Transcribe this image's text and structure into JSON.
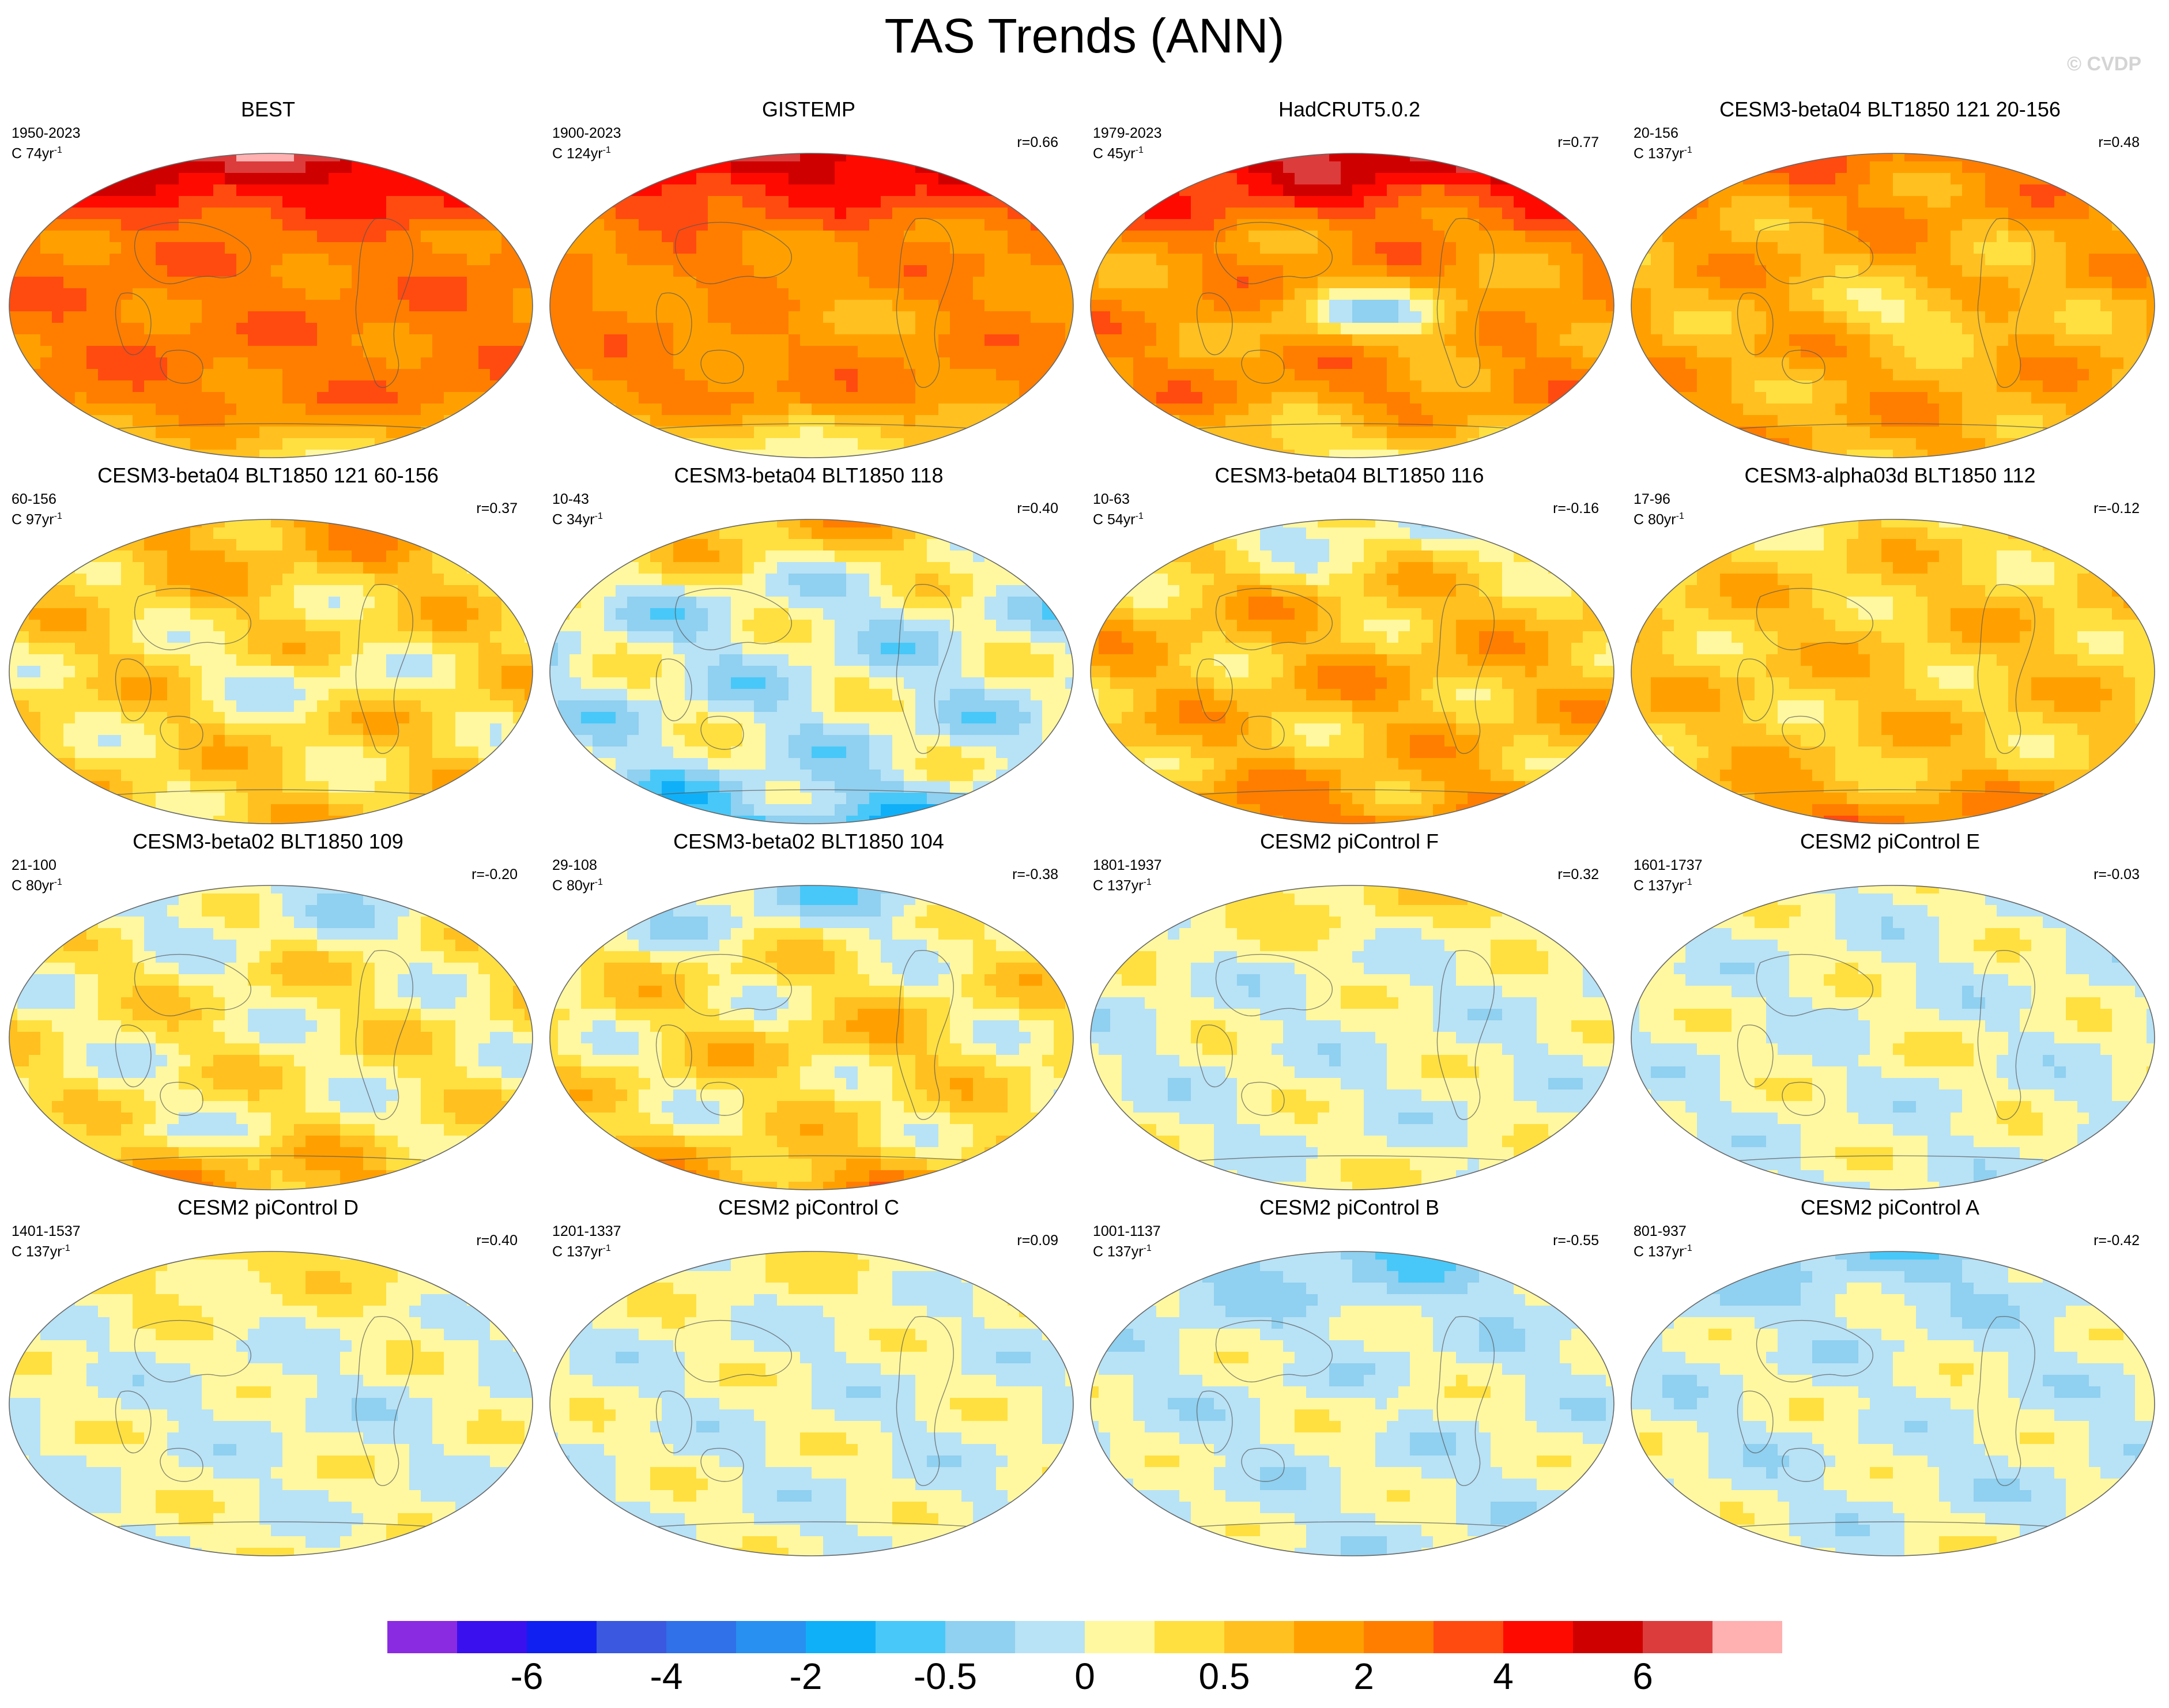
{
  "title": "TAS Trends (ANN)",
  "watermark": "© CVDP",
  "chart_data": {
    "type": "heatmap",
    "variable": "TAS",
    "season": "ANN",
    "panels": [
      {
        "title": "BEST",
        "years": "1950-2023",
        "c": "C 74yr",
        "r": "",
        "pattern": {
          "base": 14,
          "arctic": 4,
          "enso": 0,
          "south": -3,
          "amp": 1
        }
      },
      {
        "title": "GISTEMP",
        "years": "1900-2023",
        "c": "C 124yr",
        "r": "r=0.66",
        "pattern": {
          "base": 13.6,
          "arctic": 4,
          "enso": -1,
          "south": -4,
          "amp": 1
        }
      },
      {
        "title": "HadCRUT5.0.2",
        "years": "1979-2023",
        "c": "C 45yr",
        "r": "r=0.77",
        "pattern": {
          "base": 13.3,
          "arctic": 4.5,
          "enso": -4,
          "south": -3,
          "amp": 1.5
        }
      },
      {
        "title": "CESM3-beta04 BLT1850 121 20-156",
        "years": "20-156",
        "c": "C 137yr",
        "r": "r=0.48",
        "pattern": {
          "base": 12.6,
          "arctic": 1.5,
          "enso": -2,
          "south": 0,
          "amp": 1.5
        }
      },
      {
        "title": "CESM3-beta04 BLT1850 121 60-156",
        "years": "60-156",
        "c": "C 97yr",
        "r": "r=0.37",
        "pattern": {
          "base": 11.2,
          "arctic": 1.8,
          "enso": -1.5,
          "south": 0.5,
          "amp": 1.8
        }
      },
      {
        "title": "CESM3-beta04 BLT1850 118",
        "years": "10-43",
        "c": "C 34yr",
        "r": "r=0.40",
        "pattern": {
          "base": 9.3,
          "arctic": 3,
          "enso": 0,
          "south": -2.5,
          "amp": 2
        }
      },
      {
        "title": "CESM3-beta04 BLT1850 116",
        "years": "10-63",
        "c": "C 54yr",
        "r": "r=-0.16",
        "pattern": {
          "base": 12,
          "arctic": -2.5,
          "enso": 0.5,
          "south": 2,
          "amp": 1.8
        }
      },
      {
        "title": "CESM3-alpha03d BLT1850 112",
        "years": "17-96",
        "c": "C 80yr",
        "r": "r=-0.12",
        "pattern": {
          "base": 11.7,
          "arctic": -0.5,
          "enso": 0,
          "south": 2,
          "amp": 1.5
        }
      },
      {
        "title": "CESM3-beta02 BLT1850 109",
        "years": "21-100",
        "c": "C 80yr",
        "r": "r=-0.20",
        "pattern": {
          "base": 10.5,
          "arctic": -1.5,
          "enso": 0,
          "south": 2.5,
          "amp": 1.8
        }
      },
      {
        "title": "CESM3-beta02 BLT1850 104",
        "years": "29-108",
        "c": "C 80yr",
        "r": "r=-0.38",
        "pattern": {
          "base": 10.8,
          "arctic": -2.5,
          "enso": 1,
          "south": 2.5,
          "amp": 1.8
        }
      },
      {
        "title": "CESM2 piControl F",
        "years": "1801-1937",
        "c": "C 137yr",
        "r": "r=0.32",
        "pattern": {
          "base": 9.6,
          "arctic": 1.5,
          "enso": 0,
          "south": 0.5,
          "amp": 1.2
        }
      },
      {
        "title": "CESM2 piControl E",
        "years": "1601-1737",
        "c": "C 137yr",
        "r": "r=-0.03",
        "pattern": {
          "base": 9.6,
          "arctic": 0,
          "enso": 0.3,
          "south": 0,
          "amp": 1.2
        }
      },
      {
        "title": "CESM2 piControl D",
        "years": "1401-1537",
        "c": "C 137yr",
        "r": "r=0.40",
        "pattern": {
          "base": 9.7,
          "arctic": 1.5,
          "enso": -0.5,
          "south": 0.3,
          "amp": 1.2
        }
      },
      {
        "title": "CESM2 piControl C",
        "years": "1201-1337",
        "c": "C 137yr",
        "r": "r=0.09",
        "pattern": {
          "base": 9.6,
          "arctic": 0.8,
          "enso": 0,
          "south": 0,
          "amp": 1.2
        }
      },
      {
        "title": "CESM2 piControl B",
        "years": "1001-1137",
        "c": "C 137yr",
        "r": "r=-0.55",
        "pattern": {
          "base": 9.4,
          "arctic": -1.5,
          "enso": 0.4,
          "south": 0,
          "amp": 1.2
        }
      },
      {
        "title": "CESM2 piControl A",
        "years": "801-937",
        "c": "C 137yr",
        "r": "r=-0.42",
        "pattern": {
          "base": 9.4,
          "arctic": -1.2,
          "enso": 0.3,
          "south": 0.3,
          "amp": 1.2
        }
      }
    ],
    "colorbar": {
      "colors": [
        "#8a2be2",
        "#3a10ee",
        "#1020f0",
        "#3a58e0",
        "#3070e8",
        "#2890f0",
        "#10b0f8",
        "#48c8f8",
        "#90d0f0",
        "#b8e2f6",
        "#fff8a0",
        "#ffe040",
        "#ffc020",
        "#ffa000",
        "#ff7e00",
        "#ff4b10",
        "#ff0a00",
        "#cf0000",
        "#dc3c3c",
        "#ffb0b0"
      ],
      "tick_labels": [
        "-6",
        "-4",
        "-2",
        "-0.5",
        "0",
        "0.5",
        "2",
        "4",
        "6"
      ],
      "tick_boundaries": [
        2,
        4,
        6,
        8,
        10,
        12,
        14,
        16,
        18
      ]
    }
  }
}
